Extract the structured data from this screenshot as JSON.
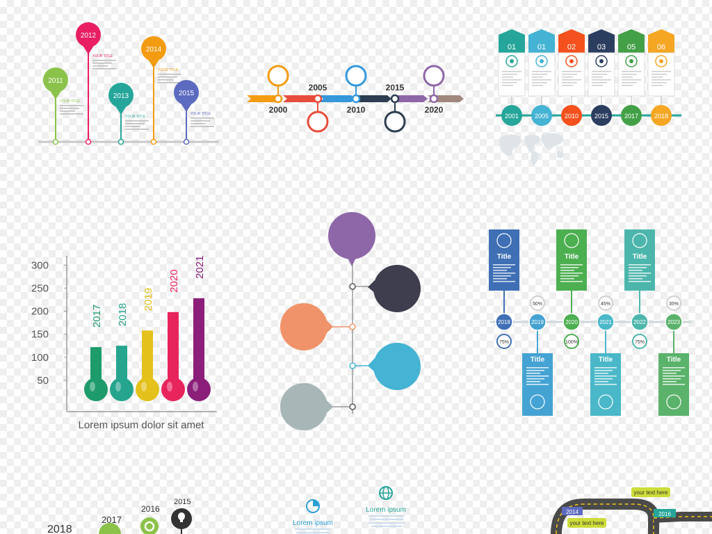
{
  "colors": {
    "green": "#8bc34a",
    "pink": "#e91e63",
    "teal": "#26a69a",
    "orange": "#f39c12",
    "blue": "#5c6bc0",
    "purple": "#8e67a8",
    "dark": "#3e3e4e",
    "salmon": "#f0936a",
    "sky": "#45b3d3",
    "grey": "#a7b6b6"
  },
  "pin_timeline": {
    "pins": [
      {
        "year": "2011",
        "label": "YOUR TITLE"
      },
      {
        "year": "2012",
        "label": "YOUR TITLE"
      },
      {
        "year": "2013",
        "label": "YOUR TITLE"
      },
      {
        "year": "2014",
        "label": "YOUR TITLE"
      },
      {
        "year": "2015",
        "label": "YOUR TITLE"
      }
    ]
  },
  "arrow_timeline": {
    "years_bottom": [
      "2000",
      "2010",
      "2020"
    ],
    "years_top": [
      "2005",
      "2015"
    ]
  },
  "hex_timeline": {
    "steps": [
      "01",
      "01",
      "02",
      "03",
      "05",
      "06"
    ],
    "years": [
      "2001",
      "2005",
      "2010",
      "2015",
      "2017",
      "2018"
    ]
  },
  "chart_data": {
    "type": "bar",
    "categories": [
      "2017",
      "2018",
      "2019",
      "2020",
      "2021"
    ],
    "values": [
      122,
      125,
      158,
      198,
      228
    ],
    "ylim": [
      0,
      320
    ],
    "yticks": [
      "50",
      "100",
      "150",
      "200",
      "250",
      "300"
    ],
    "xlabel": "Lorem ipsum dolor sit amet",
    "grid": false
  },
  "grid_timeline": {
    "titles": [
      "Title",
      "Title",
      "Title",
      "Title",
      "Title",
      "Title"
    ],
    "years": [
      "2018",
      "2019",
      "2020",
      "2021",
      "2022",
      "2023"
    ],
    "percents_top": [
      "50%",
      "45%",
      "35%"
    ],
    "percents_bottom": [
      "75%",
      "100%",
      "75%"
    ]
  },
  "bottom_left": {
    "years": [
      "2018",
      "2017",
      "2016",
      "2015"
    ]
  },
  "bottom_middle": {
    "labels": [
      "Lorem ipsum",
      "Lorem ipsum"
    ]
  },
  "bottom_right": {
    "year_a": "2014",
    "year_b": "2016",
    "callouts": [
      "your text here",
      "your text here"
    ]
  }
}
